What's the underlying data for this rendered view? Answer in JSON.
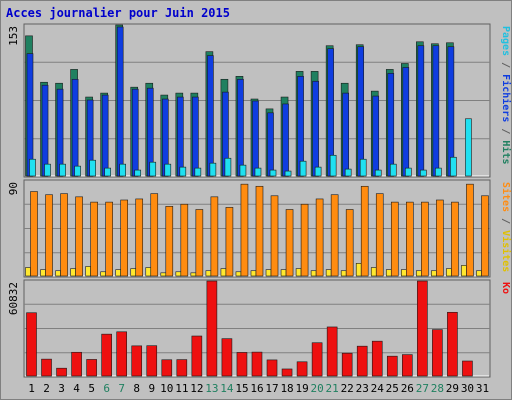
{
  "chart_data": {
    "title": "Acces journalier pour Juin 2015",
    "type": "bar",
    "days": [
      "1",
      "2",
      "3",
      "4",
      "5",
      "6",
      "7",
      "8",
      "9",
      "10",
      "11",
      "12",
      "13",
      "14",
      "15",
      "16",
      "17",
      "18",
      "19",
      "20",
      "21",
      "22",
      "23",
      "24",
      "25",
      "26",
      "27",
      "28",
      "29",
      "30",
      "31"
    ],
    "weekend_days": [
      6,
      7,
      13,
      14,
      20,
      21,
      27,
      28
    ],
    "panels": [
      {
        "name": "traffic",
        "max_label": "153",
        "axis_label_parts": [
          "Pages",
          "Fichiers",
          "Hits"
        ],
        "max": 153,
        "series": [
          {
            "name": "Hits",
            "color": "#1f8060",
            "values": [
              142,
              95,
              94,
              108,
              80,
              84,
              153,
              90,
              94,
              82,
              84,
              84,
              126,
              98,
              101,
              78,
              68,
              80,
              106,
              106,
              132,
              94,
              133,
              86,
              108,
              114,
              136,
              134,
              135,
              0,
              0
            ]
          },
          {
            "name": "Fichiers",
            "color": "#0f3de0",
            "values": [
              124,
              92,
              88,
              98,
              77,
              82,
              151,
              88,
              89,
              78,
              80,
              80,
              122,
              85,
              98,
              76,
              64,
              73,
              101,
              96,
              129,
              84,
              131,
              81,
              104,
              110,
              132,
              132,
              131,
              0,
              0
            ]
          },
          {
            "name": "Pages",
            "color": "#20e0f0",
            "values": [
              17,
              12,
              12,
              10,
              16,
              8,
              12,
              6,
              14,
              12,
              9,
              8,
              13,
              18,
              11,
              8,
              6,
              5,
              15,
              9,
              21,
              7,
              17,
              6,
              12,
              8,
              6,
              8,
              19,
              58,
              0
            ]
          }
        ]
      },
      {
        "name": "visits",
        "max_label": "90",
        "axis_label_parts": [
          "Sites",
          "Visites"
        ],
        "max": 90,
        "series": [
          {
            "name": "Visites",
            "color": "#ff8c10",
            "values": [
              80,
              77,
              78,
              75,
              70,
              70,
              72,
              73,
              78,
              66,
              68,
              63,
              75,
              65,
              87,
              85,
              76,
              63,
              68,
              73,
              77,
              63,
              85,
              78,
              70,
              70,
              70,
              72,
              70,
              87,
              76
            ]
          },
          {
            "name": "Sites",
            "color": "#ffe830",
            "values": [
              8,
              6,
              5,
              7,
              9,
              4,
              6,
              7,
              8,
              3,
              4,
              3,
              5,
              7,
              4,
              5,
              6,
              6,
              7,
              5,
              6,
              5,
              12,
              8,
              6,
              6,
              5,
              5,
              7,
              10,
              5
            ]
          }
        ]
      },
      {
        "name": "bandwidth",
        "max_label": "60832",
        "axis_label_parts": [
          "Ko"
        ],
        "max": 60832,
        "series": [
          {
            "name": "Ko",
            "color": "#ee1010",
            "values": [
              40500,
              10800,
              5000,
              15200,
              10600,
              26800,
              28300,
              19300,
              19400,
              10400,
              10500,
              25600,
              60800,
              23900,
              15100,
              15300,
              10300,
              4500,
              9100,
              21300,
              31400,
              14600,
              19100,
              22300,
              12700,
              13700,
              60800,
              29700,
              40800,
              9600,
              0
            ]
          }
        ]
      }
    ]
  }
}
